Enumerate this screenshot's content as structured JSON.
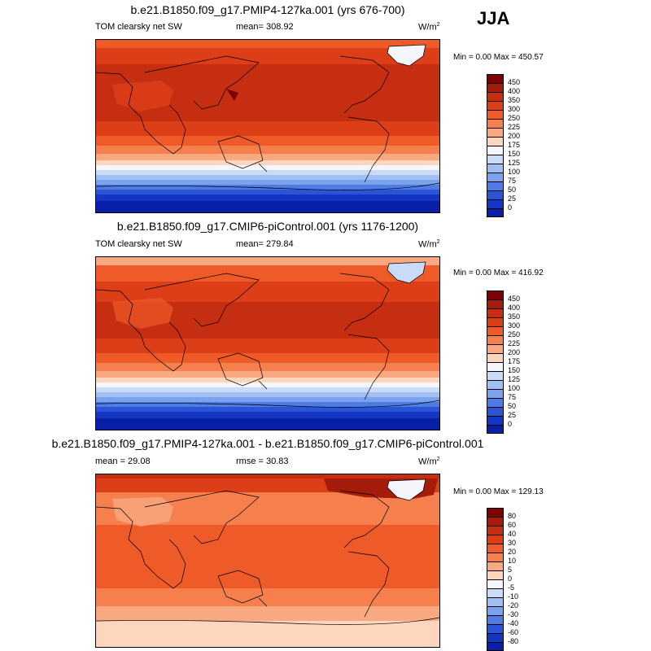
{
  "season": "JJA",
  "units_base": "W/m",
  "units_exp": "2",
  "panels": [
    {
      "title": "b.e21.B1850.f09_g17.PMIP4-127ka.001 (yrs 676-700)",
      "left_label": "TOM clearsky net SW",
      "center_label": "mean= 308.92",
      "minmax": "Min =   0.00 Max = 450.57",
      "colorbar_labels": [
        "450",
        "400",
        "350",
        "300",
        "250",
        "225",
        "200",
        "175",
        "150",
        "125",
        "100",
        "75",
        "50",
        "25",
        "0"
      ],
      "colorbar_colors": [
        "#7f0000",
        "#a51c0a",
        "#c52e10",
        "#dc3e18",
        "#ee5a28",
        "#f5804e",
        "#f9a982",
        "#fdd6bd",
        "#f4f6fb",
        "#c9dbf6",
        "#a1c0f1",
        "#7ba2ec",
        "#4e7be4",
        "#2b55d6",
        "#1436c2",
        "#0a1fa8"
      ]
    },
    {
      "title": "b.e21.B1850.f09_g17.CMIP6-piControl.001 (yrs 1176-1200)",
      "left_label": "TOM clearsky net SW",
      "center_label": "mean= 279.84",
      "minmax": "Min =   0.00 Max = 416.92",
      "colorbar_labels": [
        "450",
        "400",
        "350",
        "300",
        "250",
        "225",
        "200",
        "175",
        "150",
        "125",
        "100",
        "75",
        "50",
        "25",
        "0"
      ],
      "colorbar_colors": [
        "#7f0000",
        "#a51c0a",
        "#c52e10",
        "#dc3e18",
        "#ee5a28",
        "#f5804e",
        "#f9a982",
        "#fdd6bd",
        "#f4f6fb",
        "#c9dbf6",
        "#a1c0f1",
        "#7ba2ec",
        "#4e7be4",
        "#2b55d6",
        "#1436c2",
        "#0a1fa8"
      ]
    },
    {
      "title": "b.e21.B1850.f09_g17.PMIP4-127ka.001 - b.e21.B1850.f09_g17.CMIP6-piControl.001",
      "left_label": "mean =  29.08",
      "center_label": "rmse =  30.83",
      "minmax": "Min =   0.00 Max = 129.13",
      "colorbar_labels": [
        "80",
        "60",
        "40",
        "30",
        "20",
        "10",
        "5",
        "0",
        "-5",
        "-10",
        "-20",
        "-30",
        "-40",
        "-60",
        "-80"
      ],
      "colorbar_colors": [
        "#7f0000",
        "#a51c0a",
        "#c52e10",
        "#dc3e18",
        "#ee5a28",
        "#f5804e",
        "#f9a982",
        "#fdd6bd",
        "#f4f6fb",
        "#c9dbf6",
        "#a1c0f1",
        "#7ba2ec",
        "#4e7be4",
        "#2b55d6",
        "#1436c2",
        "#0a1fa8"
      ]
    }
  ]
}
